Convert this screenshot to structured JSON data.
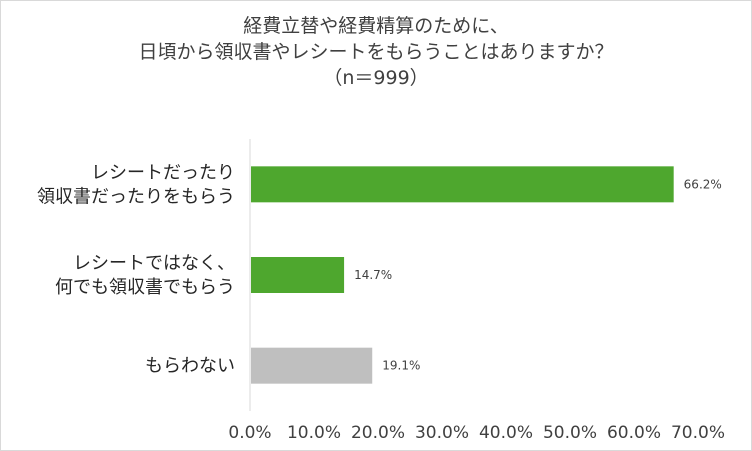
{
  "chart_data": {
    "type": "bar",
    "orientation": "horizontal",
    "title_lines": [
      "経費立替や経費精算のために、",
      "日頃から領収書やレシートをもらうことはありますか？",
      "（n＝999）"
    ],
    "categories": [
      [
        "レシートだったり",
        "領収書だったりをもらう"
      ],
      [
        "レシートではなく、",
        "何でも領収書でもらう"
      ],
      [
        "もらわない"
      ]
    ],
    "values": [
      66.2,
      14.7,
      19.1
    ],
    "data_labels": [
      "66.2%",
      "14.7%",
      "19.1%"
    ],
    "bar_colors": [
      "#4ea72e",
      "#4ea72e",
      "#bfbfbf"
    ],
    "xlim": [
      0,
      70
    ],
    "x_ticks": [
      0,
      10,
      20,
      30,
      40,
      50,
      60,
      70
    ],
    "x_tick_labels": [
      "0.0%",
      "10.0%",
      "20.0%",
      "30.0%",
      "40.0%",
      "50.0%",
      "60.0%",
      "70.0%"
    ],
    "grid": false,
    "legend": "none"
  }
}
